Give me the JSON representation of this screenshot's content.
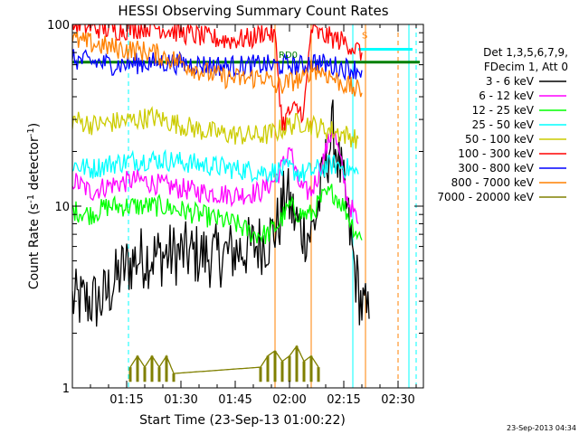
{
  "chart_data": {
    "type": "line",
    "title": "HESSI Observing Summary Count Rates",
    "xlabel": "Start Time (23-Sep-13 01:00:22)",
    "ylabel_main": "Count Rate (s",
    "ylabel_sup1": "-1",
    "ylabel_mid": " detector",
    "ylabel_sup2": "-1",
    "ylabel_end": ")",
    "y_scale": "log",
    "ylim": [
      1,
      100
    ],
    "xlim_minutes": [
      0,
      97
    ],
    "x_ticks": [
      {
        "label": "01:15",
        "t": 15
      },
      {
        "label": "01:30",
        "t": 30
      },
      {
        "label": "01:45",
        "t": 45
      },
      {
        "label": "02:00",
        "t": 60
      },
      {
        "label": "02:15",
        "t": 75
      },
      {
        "label": "02:30",
        "t": 90
      }
    ],
    "y_ticks": [
      {
        "label": "1",
        "v": 1
      },
      {
        "label": "10",
        "v": 10
      },
      {
        "label": "100",
        "v": 100
      }
    ],
    "legend": {
      "header_line1": "Det 1,3,5,6,7,9,",
      "header_line2": "FDecim 1, Att 0",
      "position": "right"
    },
    "series": [
      {
        "name": "3 - 6 keV",
        "color": "#000000",
        "points": [
          [
            0,
            3.0
          ],
          [
            8,
            3.0
          ],
          [
            14,
            4.5
          ],
          [
            18,
            5.2
          ],
          [
            30,
            5.5
          ],
          [
            40,
            5.3
          ],
          [
            50,
            6.0
          ],
          [
            54,
            6.5
          ],
          [
            57,
            8.0
          ],
          [
            59,
            12
          ],
          [
            61,
            9
          ],
          [
            63,
            7.5
          ],
          [
            66,
            7
          ],
          [
            68,
            10
          ],
          [
            70,
            17
          ],
          [
            72,
            26
          ],
          [
            74,
            16
          ],
          [
            76,
            9
          ],
          [
            78,
            4.5
          ],
          [
            80,
            2.8
          ],
          [
            82,
            2.4
          ]
        ]
      },
      {
        "name": "6 - 12 keV",
        "color": "#ff00ff",
        "points": [
          [
            0,
            14
          ],
          [
            5,
            12
          ],
          [
            10,
            13
          ],
          [
            18,
            14
          ],
          [
            25,
            13
          ],
          [
            35,
            12
          ],
          [
            45,
            11.5
          ],
          [
            52,
            12
          ],
          [
            56,
            14
          ],
          [
            59,
            18
          ],
          [
            60,
            22
          ],
          [
            62,
            14
          ],
          [
            64,
            12
          ],
          [
            66,
            12
          ],
          [
            68,
            15
          ],
          [
            70,
            20
          ],
          [
            72,
            27
          ],
          [
            74,
            18
          ],
          [
            76,
            11
          ],
          [
            79,
            8
          ]
        ]
      },
      {
        "name": "12 - 25 keV",
        "color": "#00ff00",
        "points": [
          [
            0,
            9.5
          ],
          [
            5,
            9
          ],
          [
            10,
            10
          ],
          [
            18,
            10
          ],
          [
            25,
            10
          ],
          [
            35,
            9
          ],
          [
            45,
            8
          ],
          [
            50,
            7
          ],
          [
            54,
            7
          ],
          [
            57,
            8
          ],
          [
            60,
            10
          ],
          [
            63,
            9
          ],
          [
            66,
            9
          ],
          [
            69,
            11
          ],
          [
            72,
            12
          ],
          [
            75,
            10
          ],
          [
            78,
            7.5
          ],
          [
            80,
            6.5
          ]
        ]
      },
      {
        "name": "25 - 50 keV",
        "color": "#00ffff",
        "points": [
          [
            0,
            17
          ],
          [
            5,
            16
          ],
          [
            10,
            17
          ],
          [
            18,
            18
          ],
          [
            25,
            18
          ],
          [
            35,
            17
          ],
          [
            45,
            16
          ],
          [
            52,
            15.5
          ],
          [
            56,
            15.5
          ],
          [
            60,
            16
          ],
          [
            64,
            15
          ],
          [
            68,
            16
          ],
          [
            72,
            17
          ],
          [
            75,
            16.5
          ],
          [
            79,
            15
          ]
        ]
      },
      {
        "name": "50 - 100 keV",
        "color": "#cccc00",
        "points": [
          [
            0,
            30
          ],
          [
            6,
            28
          ],
          [
            12,
            29
          ],
          [
            18,
            30
          ],
          [
            22,
            31
          ],
          [
            30,
            28
          ],
          [
            36,
            26
          ],
          [
            42,
            25
          ],
          [
            48,
            24.5
          ],
          [
            53,
            24.5
          ],
          [
            56,
            25.5
          ],
          [
            60,
            28
          ],
          [
            64,
            29
          ],
          [
            68,
            27
          ],
          [
            72,
            26
          ],
          [
            76,
            24.5
          ],
          [
            79,
            23.5
          ]
        ]
      },
      {
        "name": "100 - 300 keV",
        "color": "#ff0000",
        "points": [
          [
            0,
            100
          ],
          [
            6,
            96
          ],
          [
            12,
            93
          ],
          [
            18,
            95
          ],
          [
            22,
            98
          ],
          [
            30,
            90
          ],
          [
            38,
            84
          ],
          [
            44,
            82
          ],
          [
            50,
            84
          ],
          [
            53,
            92
          ],
          [
            56,
            86
          ],
          [
            58,
            28
          ],
          [
            60,
            33
          ],
          [
            62,
            34
          ],
          [
            64,
            33
          ],
          [
            66,
            95
          ],
          [
            68,
            88
          ],
          [
            72,
            84
          ],
          [
            76,
            79
          ],
          [
            78,
            74
          ],
          [
            80,
            70
          ]
        ]
      },
      {
        "name": "300 - 800 keV",
        "color": "#0000ff",
        "points": [
          [
            0,
            64
          ],
          [
            6,
            62
          ],
          [
            12,
            60
          ],
          [
            18,
            61
          ],
          [
            24,
            62
          ],
          [
            30,
            61
          ],
          [
            36,
            60
          ],
          [
            42,
            59
          ],
          [
            48,
            59
          ],
          [
            52,
            60
          ],
          [
            56,
            59
          ],
          [
            60,
            60
          ],
          [
            64,
            59
          ],
          [
            66,
            63
          ],
          [
            70,
            60
          ],
          [
            74,
            58
          ],
          [
            78,
            57
          ],
          [
            80,
            56
          ]
        ]
      },
      {
        "name": "800 - 7000 keV",
        "color": "#ff8000",
        "points": [
          [
            0,
            82
          ],
          [
            6,
            78
          ],
          [
            12,
            74
          ],
          [
            18,
            72
          ],
          [
            22,
            70
          ],
          [
            30,
            62
          ],
          [
            36,
            55
          ],
          [
            42,
            51
          ],
          [
            48,
            50
          ],
          [
            53,
            52
          ],
          [
            56,
            45
          ],
          [
            60,
            48
          ],
          [
            62,
            50
          ],
          [
            64,
            49
          ],
          [
            66,
            58
          ],
          [
            70,
            54
          ],
          [
            74,
            48
          ],
          [
            78,
            44
          ],
          [
            80,
            42
          ]
        ]
      },
      {
        "name": "7000 - 20000 keV",
        "color": "#808000",
        "points": [
          [
            16,
            1.3
          ],
          [
            18,
            1.5
          ],
          [
            20,
            1.3
          ],
          [
            22,
            1.5
          ],
          [
            24,
            1.3
          ],
          [
            26,
            1.5
          ],
          [
            28,
            1.2
          ],
          [
            52,
            1.3
          ],
          [
            54,
            1.5
          ],
          [
            56,
            1.6
          ],
          [
            58,
            1.4
          ],
          [
            60,
            1.5
          ],
          [
            62,
            1.7
          ],
          [
            64,
            1.4
          ],
          [
            66,
            1.5
          ],
          [
            68,
            1.3
          ]
        ]
      }
    ],
    "annotations": [
      {
        "text": "RD0",
        "t": 57,
        "v": 64,
        "color": "#008000"
      },
      {
        "text": "S",
        "t": 80,
        "v": 82,
        "color": "#ff8000"
      }
    ],
    "vertical_lines": [
      {
        "t": 0,
        "color": "#00ffff",
        "style": "solid"
      },
      {
        "t": 15.5,
        "color": "#00ffff",
        "style": "dashed"
      },
      {
        "t": 56,
        "color": "#ff8000",
        "style": "solid"
      },
      {
        "t": 66,
        "color": "#ff8000",
        "style": "solid"
      },
      {
        "t": 77.5,
        "color": "#00ffff",
        "style": "solid"
      },
      {
        "t": 81,
        "color": "#ff8000",
        "style": "solid"
      },
      {
        "t": 90,
        "color": "#ff8000",
        "style": "dashed"
      },
      {
        "t": 93,
        "color": "#00ffff",
        "style": "solid"
      },
      {
        "t": 95,
        "color": "#00ffff",
        "style": "dashed"
      }
    ],
    "horizontal_bars": [
      {
        "t0": 0,
        "t1": 96,
        "v": 62,
        "color": "#008000"
      },
      {
        "t0": 79,
        "t1": 94,
        "v": 73,
        "color": "#00ffff"
      }
    ]
  },
  "footer": {
    "timestamp": "23-Sep-2013 04:34"
  }
}
